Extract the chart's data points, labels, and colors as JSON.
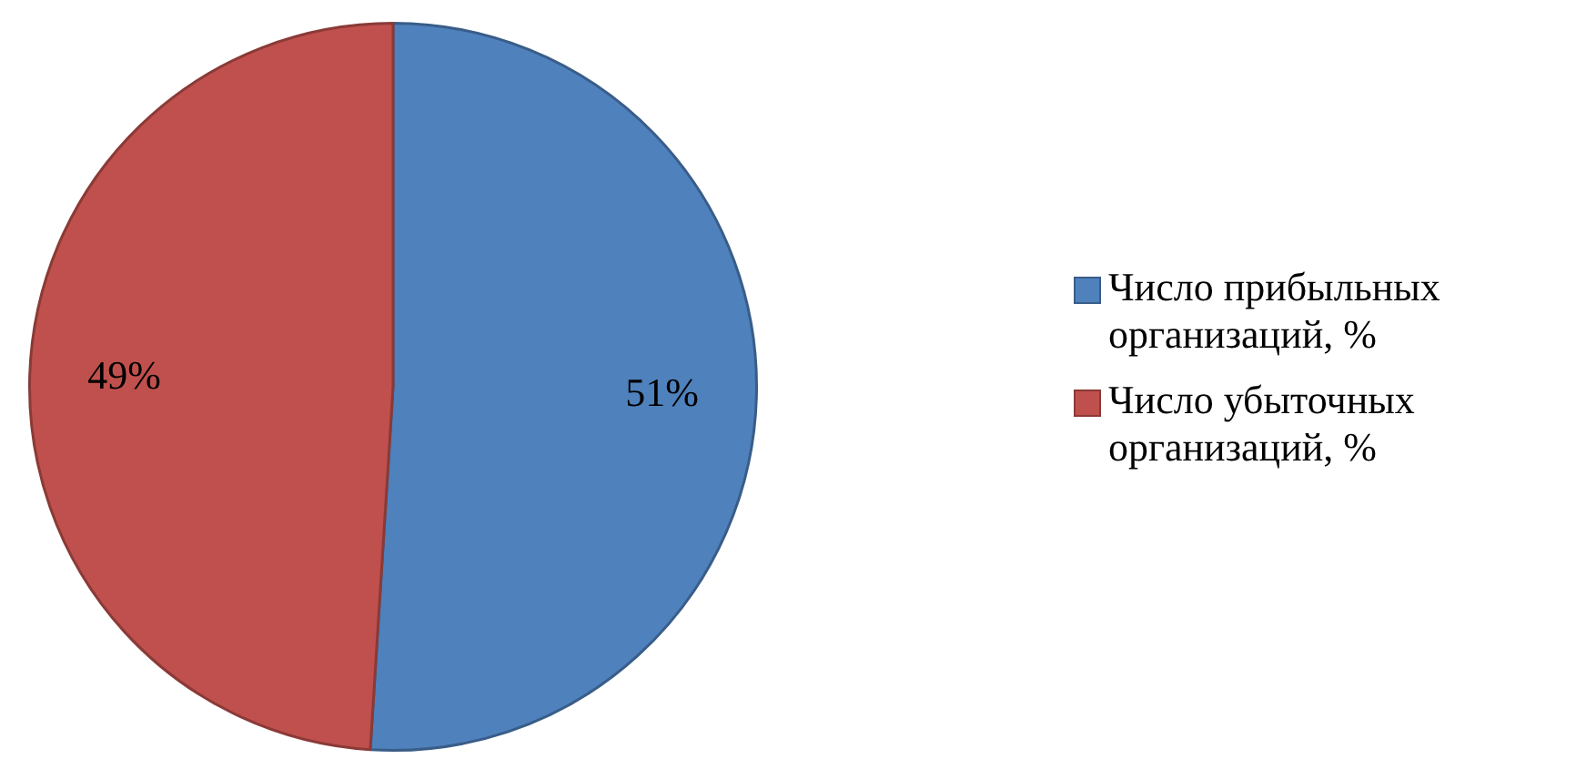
{
  "chart_data": {
    "type": "pie",
    "categories": [
      "Число прибыльных организаций, %",
      "Число убыточных организаций, %"
    ],
    "values": [
      51,
      49
    ],
    "colors": [
      "#4f81bd",
      "#c0504d"
    ],
    "value_labels": [
      "51%",
      "49%"
    ],
    "legend": "right"
  }
}
